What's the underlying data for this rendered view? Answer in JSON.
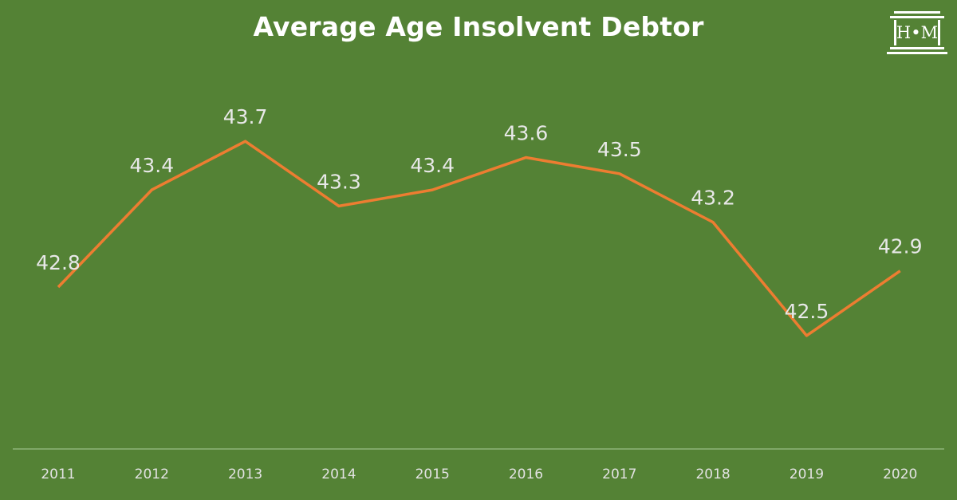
{
  "chart_data": {
    "type": "line",
    "title": "Average Age Insolvent Debtor",
    "categories": [
      "2011",
      "2012",
      "2013",
      "2014",
      "2015",
      "2016",
      "2017",
      "2018",
      "2019",
      "2020"
    ],
    "series": [
      {
        "values": [
          42.8,
          43.4,
          43.7,
          43.3,
          43.4,
          43.6,
          43.5,
          43.2,
          42.5,
          42.9
        ]
      }
    ],
    "value_labels": [
      "42.8",
      "43.4",
      "43.7",
      "43.3",
      "43.4",
      "43.6",
      "43.5",
      "43.2",
      "42.5",
      "42.9"
    ],
    "ylim": [
      41.8,
      44.1
    ],
    "grid": false,
    "legend": "none",
    "colors": {
      "background": "#548235",
      "line": "#ED7D31",
      "axis": "#8FB579",
      "text": "#FFFFFF"
    }
  },
  "logo": {
    "text": "H•M"
  }
}
